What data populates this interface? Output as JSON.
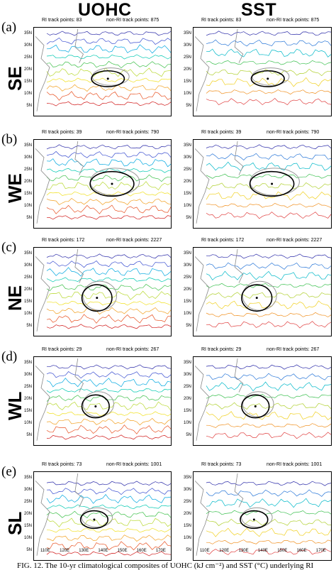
{
  "columns": [
    "UOHC",
    "SST"
  ],
  "rows": [
    {
      "letter": "(a)",
      "abbr": "SE",
      "uohc": {
        "ri": "83",
        "nonri": "875"
      },
      "sst": {
        "ri": "83",
        "nonri": "875"
      }
    },
    {
      "letter": "(b)",
      "abbr": "WE",
      "uohc": {
        "ri": "39",
        "nonri": "790"
      },
      "sst": {
        "ri": "39",
        "nonri": "790"
      }
    },
    {
      "letter": "(c)",
      "abbr": "NE",
      "uohc": {
        "ri": "172",
        "nonri": "2227"
      },
      "sst": {
        "ri": "172",
        "nonri": "2227"
      }
    },
    {
      "letter": "(d)",
      "abbr": "WL",
      "uohc": {
        "ri": "29",
        "nonri": "267"
      },
      "sst": {
        "ri": "29",
        "nonri": "267"
      }
    },
    {
      "letter": "(e)",
      "abbr": "SL",
      "uohc": {
        "ri": "73",
        "nonri": "1001"
      },
      "sst": {
        "ri": "73",
        "nonri": "1001"
      }
    }
  ],
  "labels": {
    "ri_track": "RI track points:",
    "nonri_track": "non-RI track points:"
  },
  "lat_ticks": [
    "35N",
    "30N",
    "25N",
    "20N",
    "15N",
    "10N",
    "5N"
  ],
  "lon_ticks": [
    "110E",
    "120E",
    "130E",
    "140E",
    "150E",
    "160E",
    "170E"
  ],
  "caption": "FIG. 12. The 10-yr climatological composites of UOHC (kJ cm⁻²) and SST (°C) underlying RI"
}
